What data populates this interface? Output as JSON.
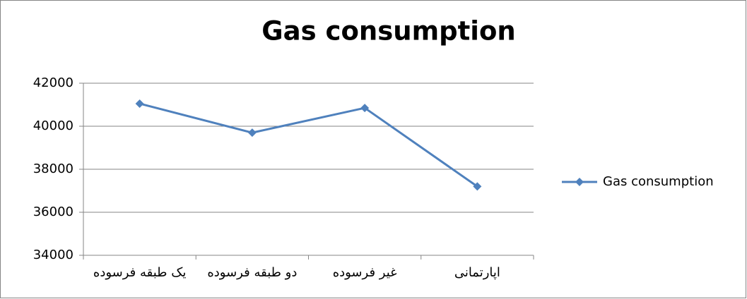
{
  "chart_data": {
    "type": "line",
    "title": "Gas consumption",
    "categories": [
      "یک طبقه فرسوده",
      "دو طبقه فرسوده",
      "غیر فرسوده",
      "اپارتمانی"
    ],
    "series": [
      {
        "name": "Gas consumption",
        "color": "#4f81bd",
        "values": [
          41050,
          39700,
          40850,
          37200
        ]
      }
    ],
    "ylim": [
      34000,
      42000
    ],
    "yticks": [
      34000,
      36000,
      38000,
      40000,
      42000
    ],
    "grid": true,
    "legend": "right",
    "marker": "diamond"
  }
}
